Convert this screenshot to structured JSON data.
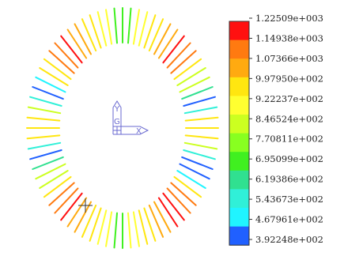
{
  "viewport": {
    "background": "#ffffff",
    "ring_stroke_count": 72
  },
  "triad": {
    "color": "#6a6ad0",
    "labels": {
      "y": "Y",
      "g": "G",
      "x": "X"
    }
  },
  "cursor": {
    "icon": "crosshair-cursor-icon",
    "color": "#333333"
  },
  "legend": {
    "labels": [
      "1.22509e+003",
      "1.14938e+003",
      "1.07366e+003",
      "9.97950e+002",
      "9.22237e+002",
      "8.46524e+002",
      "7.70811e+002",
      "6.95099e+002",
      "6.19386e+002",
      "5.43673e+002",
      "4.67961e+002",
      "3.92248e+002"
    ],
    "bands": [
      "#ff1010",
      "#ff7a10",
      "#ffaa10",
      "#ffe610",
      "#ffff30",
      "#ccff20",
      "#88ff20",
      "#40f020",
      "#30e090",
      "#30f0d8",
      "#20f4ff",
      "#2060ff"
    ]
  }
}
